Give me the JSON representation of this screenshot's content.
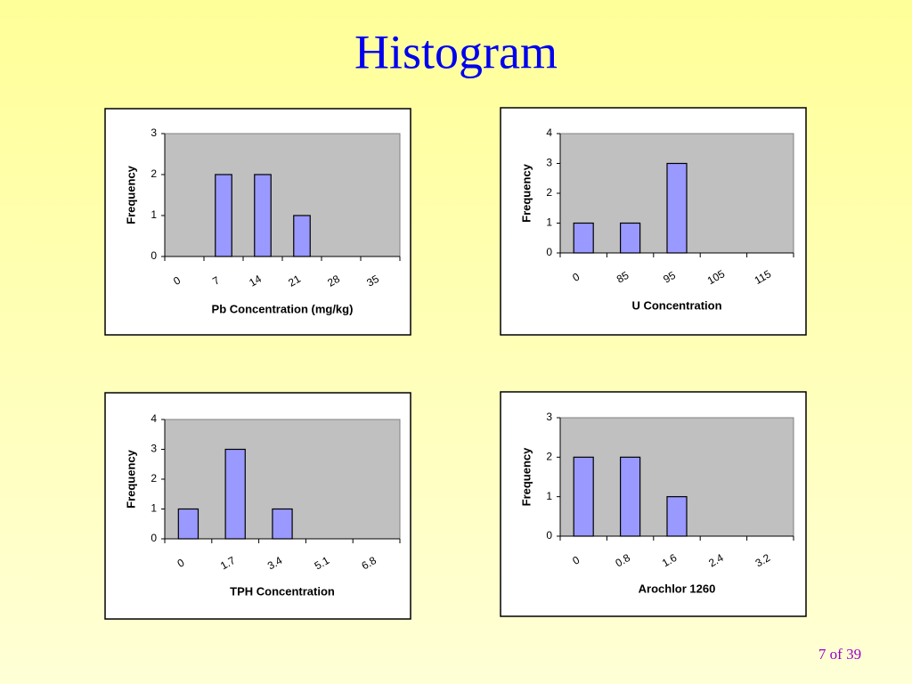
{
  "title": "Histogram",
  "page_number": "7 of 39",
  "chart_data": [
    {
      "type": "bar",
      "x_label": "Pb Concentration (mg/kg)",
      "y_label": "Frequency",
      "categories": [
        "0",
        "7",
        "14",
        "21",
        "28",
        "35"
      ],
      "values": [
        0,
        2,
        2,
        1,
        0,
        0
      ],
      "color": "#9999ff",
      "ylim": [
        0,
        3
      ],
      "yticks": [
        0,
        1,
        2,
        3
      ],
      "grid": false
    },
    {
      "type": "bar",
      "x_label": "U Concentration",
      "y_label": "Frequency",
      "categories": [
        "0",
        "85",
        "95",
        "105",
        "115"
      ],
      "values": [
        1,
        1,
        3,
        0,
        0
      ],
      "color": "#9999ff",
      "ylim": [
        0,
        4
      ],
      "yticks": [
        0,
        1,
        2,
        3,
        4
      ],
      "grid": false
    },
    {
      "type": "bar",
      "x_label": "TPH Concentration",
      "y_label": "Frequency",
      "categories": [
        "0",
        "1.7",
        "3.4",
        "5.1",
        "6.8"
      ],
      "values": [
        1,
        3,
        1,
        0,
        0
      ],
      "color": "#9999ff",
      "ylim": [
        0,
        4
      ],
      "yticks": [
        0,
        1,
        2,
        3,
        4
      ],
      "grid": false
    },
    {
      "type": "bar",
      "x_label": "Arochlor 1260",
      "y_label": "Frequency",
      "categories": [
        "0",
        "0.8",
        "1.6",
        "2.4",
        "3.2"
      ],
      "values": [
        2,
        2,
        1,
        0,
        0
      ],
      "color": "#9999ff",
      "ylim": [
        0,
        3
      ],
      "yticks": [
        0,
        1,
        2,
        3
      ],
      "grid": false
    }
  ]
}
